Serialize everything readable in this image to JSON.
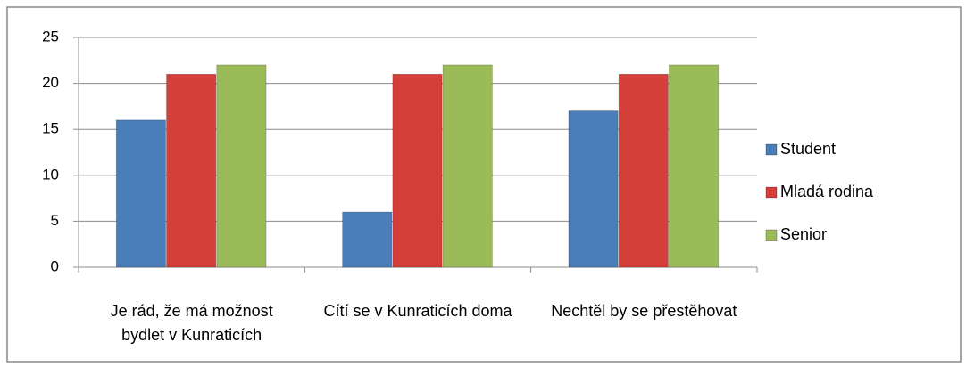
{
  "chart_data": {
    "type": "bar",
    "categories": [
      "Je rád, že má možnost bydlet v Kunraticích",
      "Cítí se v Kunraticích doma",
      "Nechtěl by se přestěhovat"
    ],
    "series": [
      {
        "name": "Student",
        "color": "#4a7ebb",
        "values": [
          16,
          6,
          17
        ]
      },
      {
        "name": "Mladá rodina",
        "color": "#d43f3a",
        "values": [
          21,
          21,
          21
        ]
      },
      {
        "name": "Senior",
        "color": "#9bbb59",
        "values": [
          22,
          22,
          22
        ]
      }
    ],
    "ylim": [
      0,
      25
    ],
    "yticks": [
      0,
      5,
      10,
      15,
      20,
      25
    ],
    "grid": true,
    "legend": "right"
  }
}
